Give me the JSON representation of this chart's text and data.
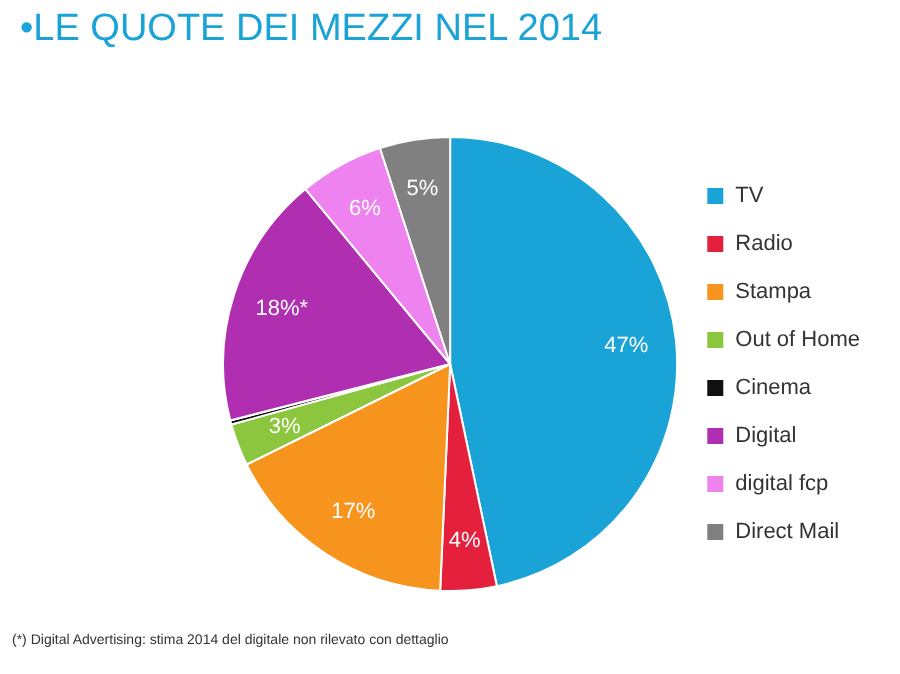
{
  "chart_data": {
    "type": "pie",
    "title": "•LE QUOTE DEI MEZZI NEL 2014",
    "categories": [
      "TV",
      "Radio",
      "Stampa",
      "Out of Home",
      "Cinema",
      "Digital",
      "digital fcp",
      "Direct Mail"
    ],
    "values": [
      46.7,
      4,
      17,
      3,
      0.3,
      18,
      6,
      5
    ],
    "value_labels": [
      "47%",
      "4%",
      "17%",
      "3%",
      null,
      "18%*",
      "6%",
      "5%"
    ],
    "colors": [
      "#1aa3d6",
      "#e5203c",
      "#f7941d",
      "#8cc63f",
      "#111111",
      "#b02fb0",
      "#ee82ee",
      "#808080"
    ],
    "legend": "right",
    "annotations": [
      "(*) Digital Advertising: stima 2014 del digitale non rilevato con dettaglio"
    ]
  }
}
